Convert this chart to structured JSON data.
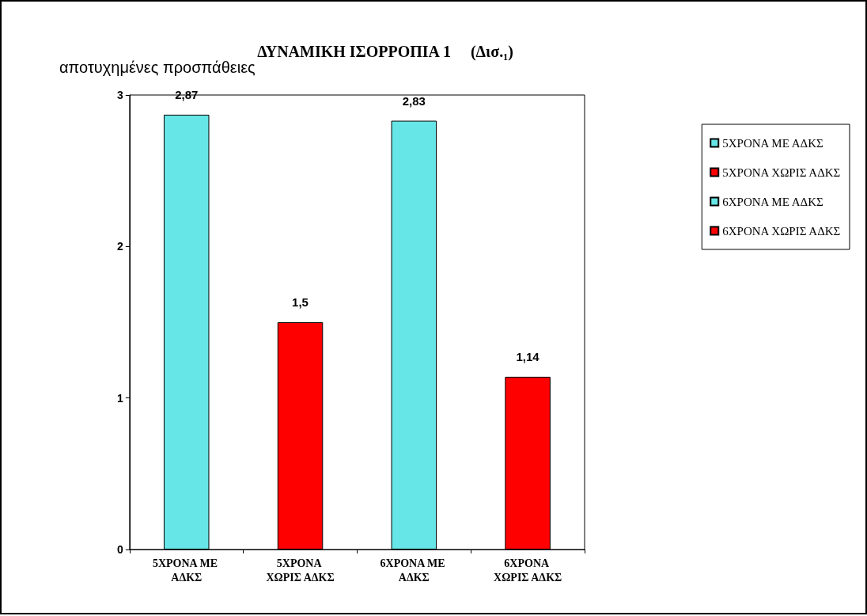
{
  "chart_data": {
    "type": "bar",
    "title": "ΔΥΝΑΜΙΚΗ ΙΣΟΡΡΟΠΙΑ 1     (Δισ.₁)",
    "ylabel": "αποτυχημένες προσπάθειες",
    "categories": [
      "5ΧΡΟΝΑ ΜΕ ΑΔΚΣ",
      "5ΧΡΟΝΑ ΧΩΡΙΣ ΑΔΚΣ",
      "6ΧΡΟΝΑ ΜΕ ΑΔΚΣ",
      "6ΧΡΟΝΑ ΧΩΡΙΣ ΑΔΚΣ"
    ],
    "series": [
      {
        "name": "5ΧΡΟΝΑ ΜΕ ΑΔΚΣ",
        "color": "#66e6e6",
        "values": [
          2.87,
          null,
          null,
          null
        ],
        "value_labels": [
          "2,87",
          null,
          null,
          null
        ]
      },
      {
        "name": "5ΧΡΟΝΑ ΧΩΡΙΣ ΑΔΚΣ",
        "color": "#ff0000",
        "values": [
          null,
          1.5,
          null,
          null
        ],
        "value_labels": [
          null,
          "1,5",
          null,
          null
        ]
      },
      {
        "name": "6ΧΡΟΝΑ ΜΕ ΑΔΚΣ",
        "color": "#66e6e6",
        "values": [
          null,
          null,
          2.83,
          null
        ],
        "value_labels": [
          null,
          null,
          "2,83",
          null
        ]
      },
      {
        "name": "6ΧΡΟΝΑ ΧΩΡΙΣ ΑΔΚΣ",
        "color": "#ff0000",
        "values": [
          null,
          null,
          null,
          1.14
        ],
        "value_labels": [
          null,
          null,
          null,
          "1,14"
        ]
      }
    ],
    "stacked": true,
    "ylim": [
      0,
      3
    ],
    "yticks": [
      0,
      1,
      2,
      3
    ],
    "grid": false,
    "legend": "right"
  }
}
